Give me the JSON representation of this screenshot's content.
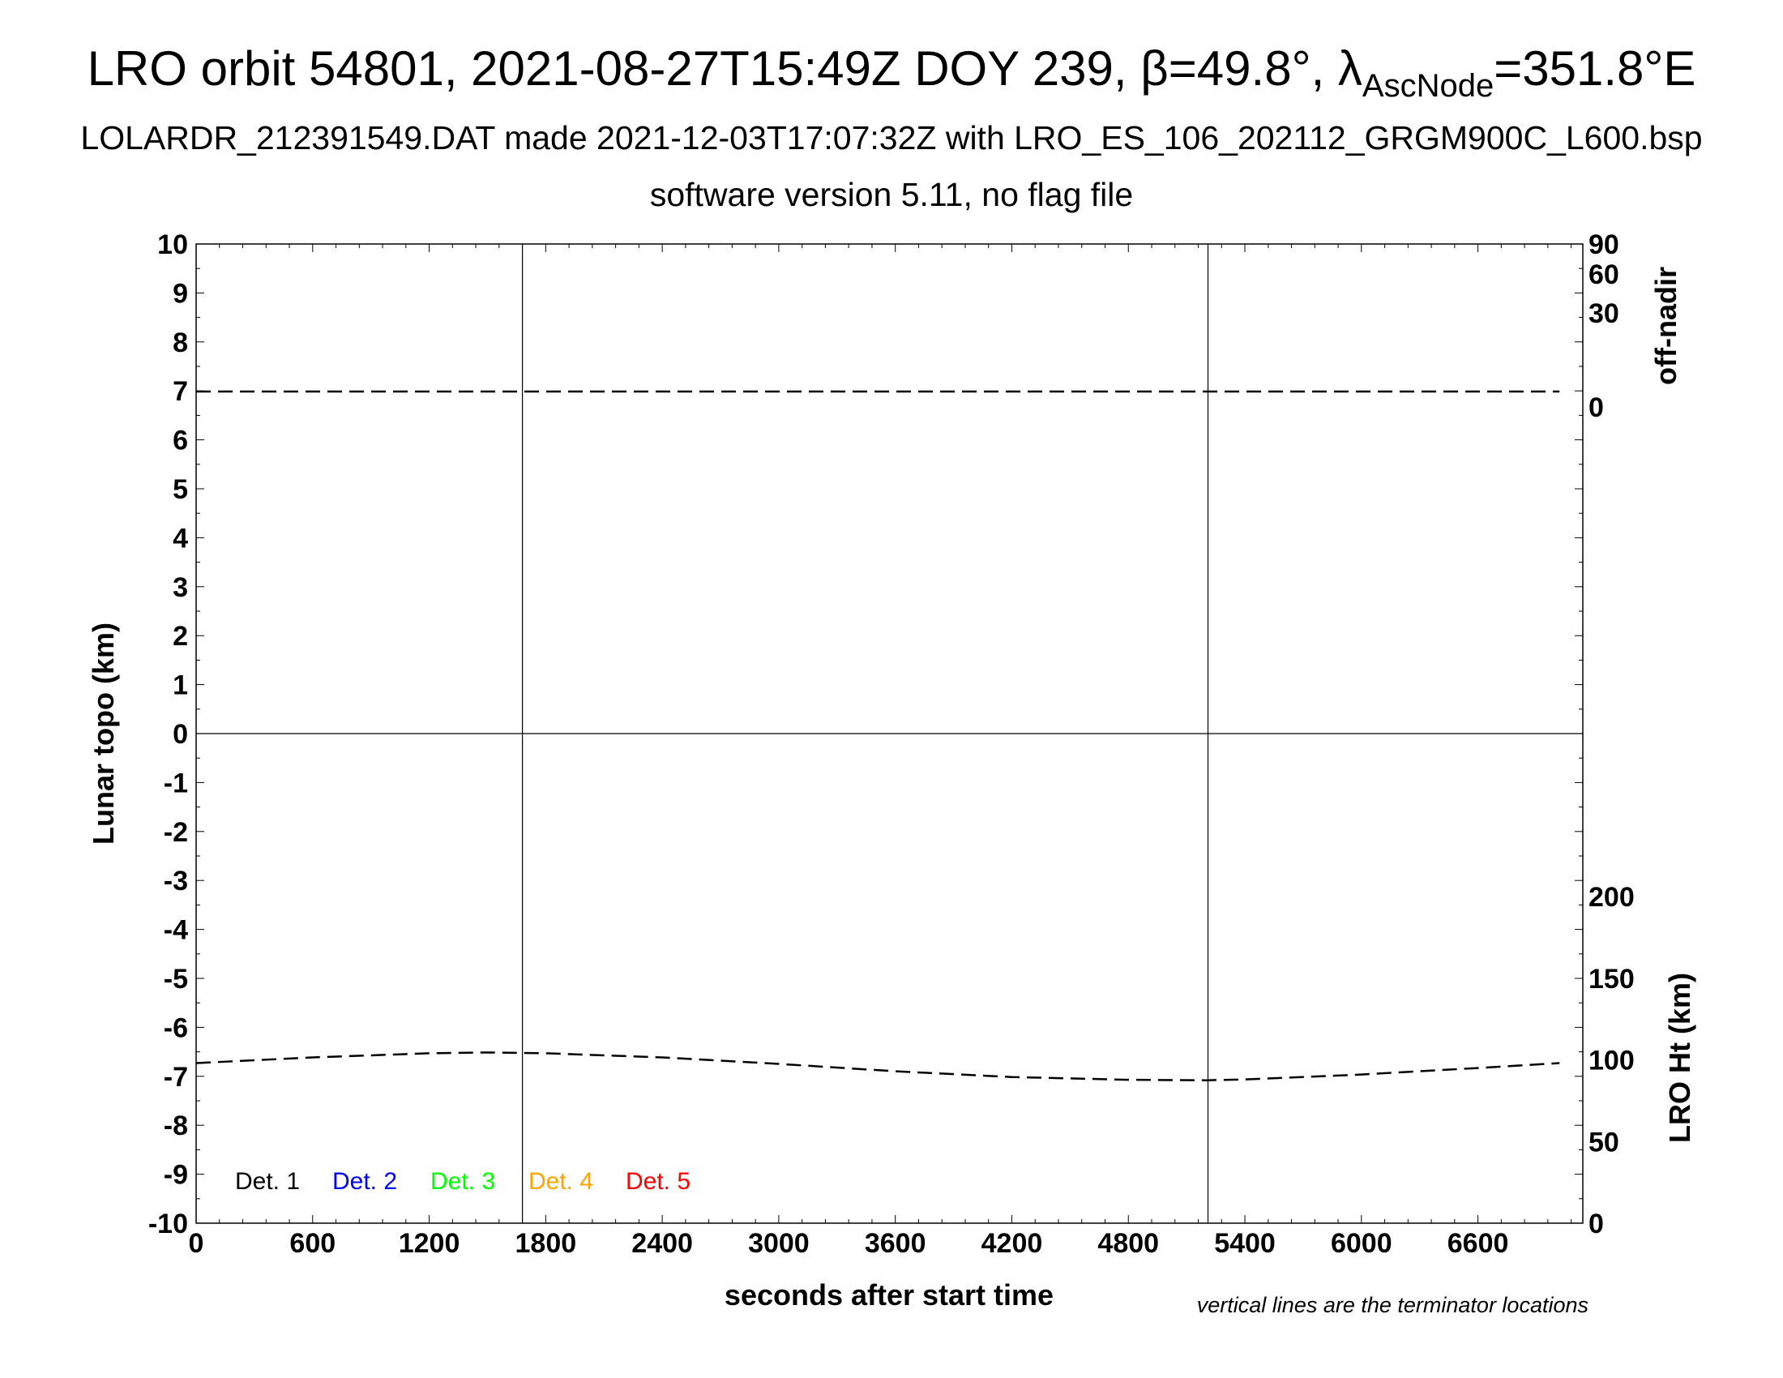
{
  "title": {
    "prefix": "LRO orbit 54801, 2021-08-27T15:49Z DOY 239, β=49.8°, λ",
    "sub": "AscNode",
    "suffix": "=351.8°E"
  },
  "subtitle1": "LOLARDR_212391549.DAT made 2021-12-03T17:07:32Z with LRO_ES_106_202112_GRGM900C_L600.bsp",
  "subtitle2": "software version 5.11, no flag file",
  "note": "vertical lines are the terminator locations",
  "colors": {
    "det1": "#000000",
    "det2": "#0000ff",
    "det3": "#00ff00",
    "det4": "#ffa500",
    "det5": "#ff0000"
  },
  "chart_data": {
    "type": "line",
    "xlabel": "seconds after start time",
    "ylabel": "Lunar topo (km)",
    "y2label_top": "off-nadir",
    "y2label_bottom": "LRO Ht (km)",
    "xlim": [
      0,
      7140
    ],
    "ylim": [
      -10,
      10
    ],
    "x_ticks": [
      "0",
      "600",
      "1200",
      "1800",
      "2400",
      "3000",
      "3600",
      "4200",
      "4800",
      "5400",
      "6000",
      "6600"
    ],
    "y_ticks": [
      "-10",
      "-9",
      "-8",
      "-7",
      "-6",
      "-5",
      "-4",
      "-3",
      "-2",
      "-1",
      "0",
      "1",
      "2",
      "3",
      "4",
      "5",
      "6",
      "7",
      "8",
      "9",
      "10"
    ],
    "off_nadir_ticks": [
      "0",
      "30",
      "60",
      "90"
    ],
    "lro_ht_ticks": [
      "0",
      "50",
      "100",
      "150",
      "200"
    ],
    "terminator_x": [
      1680,
      5210
    ],
    "legend": [
      "Det. 1",
      "Det. 2",
      "Det. 3",
      "Det. 4",
      "Det. 5"
    ],
    "series": [
      {
        "name": "off-nadir",
        "axis": "off-nadir (deg)",
        "x": [
          0,
          1200,
          2400,
          3600,
          4800,
          6000,
          7020
        ],
        "values": [
          0.8,
          0.8,
          0.8,
          0.8,
          0.8,
          0.8,
          0.8
        ]
      },
      {
        "name": "LRO Ht",
        "axis": "LRO Ht (km)",
        "x": [
          0,
          600,
          1200,
          1500,
          1800,
          2400,
          3000,
          3600,
          4200,
          4800,
          5200,
          5400,
          6000,
          6600,
          7020
        ],
        "values": [
          98,
          101.5,
          104,
          104.5,
          104,
          101.5,
          97.5,
          93,
          89.5,
          87.8,
          87.5,
          88,
          91,
          95,
          98
        ]
      }
    ]
  }
}
